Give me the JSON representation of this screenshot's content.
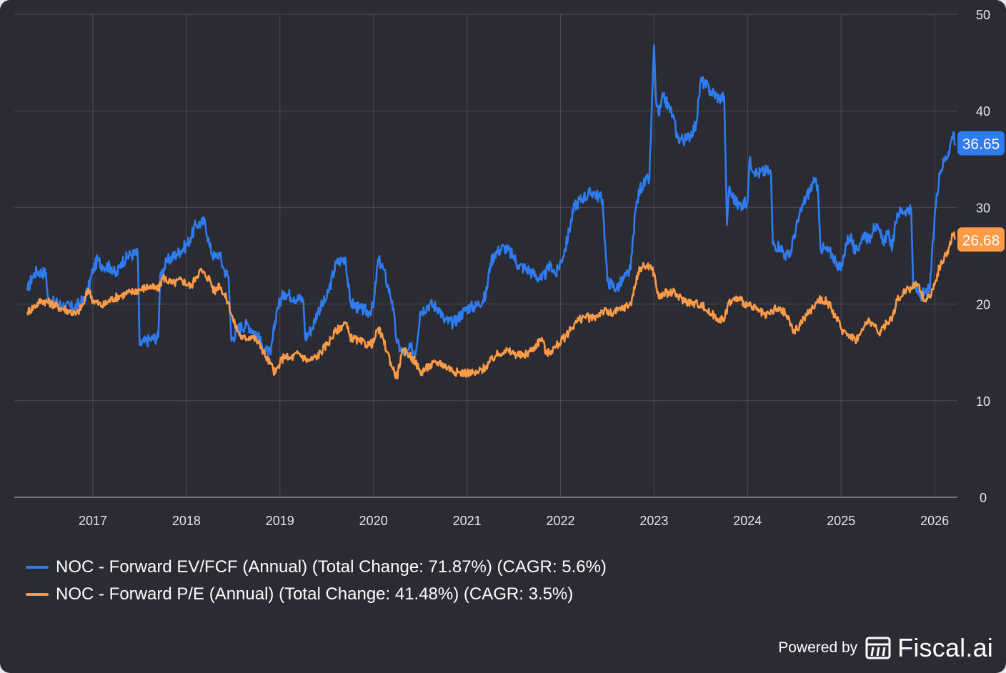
{
  "colors": {
    "background": "#2a2b33",
    "grid": "#4a4b54",
    "axis_text": "#e6e6e6",
    "ev_fcf": "#2f7bf0",
    "pe": "#ff9a47"
  },
  "chart_data": {
    "type": "line",
    "x_ticks": [
      "2017",
      "2018",
      "2019",
      "2020",
      "2021",
      "2022",
      "2023",
      "2024",
      "2025",
      "2026"
    ],
    "y_ticks": [
      "0",
      "10",
      "20",
      "30",
      "40",
      "50"
    ],
    "ylim": [
      0,
      50
    ],
    "xlim": [
      2016.3,
      2026.35
    ],
    "series": [
      {
        "name": "NOC - Forward EV/FCF (Annual) (Total Change: 71.87%) (CAGR: 5.6%)",
        "color": "#2f7bf0",
        "last_value_label": "36.65",
        "points": [
          [
            2016.3,
            21.4
          ],
          [
            2016.35,
            22.8
          ],
          [
            2016.4,
            23.4
          ],
          [
            2016.5,
            23.2
          ],
          [
            2016.52,
            20.3
          ],
          [
            2016.6,
            20.1
          ],
          [
            2016.7,
            19.8
          ],
          [
            2016.8,
            19.6
          ],
          [
            2016.9,
            20.4
          ],
          [
            2016.95,
            21.5
          ],
          [
            2017.0,
            23.5
          ],
          [
            2017.05,
            24.6
          ],
          [
            2017.1,
            24.0
          ],
          [
            2017.2,
            23.8
          ],
          [
            2017.25,
            22.9
          ],
          [
            2017.3,
            24.3
          ],
          [
            2017.4,
            25.1
          ],
          [
            2017.48,
            25.2
          ],
          [
            2017.5,
            15.8
          ],
          [
            2017.6,
            16.3
          ],
          [
            2017.7,
            16.6
          ],
          [
            2017.72,
            23.0
          ],
          [
            2017.8,
            24.5
          ],
          [
            2017.9,
            25.2
          ],
          [
            2018.0,
            26.1
          ],
          [
            2018.05,
            26.9
          ],
          [
            2018.1,
            28.2
          ],
          [
            2018.2,
            28.5
          ],
          [
            2018.25,
            25.9
          ],
          [
            2018.3,
            24.8
          ],
          [
            2018.35,
            25.3
          ],
          [
            2018.4,
            23.6
          ],
          [
            2018.45,
            22.8
          ],
          [
            2018.48,
            16.2
          ],
          [
            2018.55,
            17.5
          ],
          [
            2018.65,
            17.9
          ],
          [
            2018.75,
            16.9
          ],
          [
            2018.8,
            15.9
          ],
          [
            2018.85,
            15.2
          ],
          [
            2018.9,
            14.8
          ],
          [
            2018.97,
            19.6
          ],
          [
            2019.05,
            21.2
          ],
          [
            2019.15,
            20.7
          ],
          [
            2019.25,
            20.4
          ],
          [
            2019.27,
            16.5
          ],
          [
            2019.35,
            17.6
          ],
          [
            2019.4,
            19.2
          ],
          [
            2019.5,
            20.6
          ],
          [
            2019.6,
            24.2
          ],
          [
            2019.7,
            24.8
          ],
          [
            2019.75,
            20.2
          ],
          [
            2019.85,
            19.5
          ],
          [
            2019.95,
            19.2
          ],
          [
            2020.0,
            19.7
          ],
          [
            2020.05,
            24.6
          ],
          [
            2020.1,
            23.8
          ],
          [
            2020.15,
            22.0
          ],
          [
            2020.2,
            20.3
          ],
          [
            2020.25,
            16.0
          ],
          [
            2020.3,
            15.2
          ],
          [
            2020.35,
            14.8
          ],
          [
            2020.4,
            15.5
          ],
          [
            2020.45,
            14.9
          ],
          [
            2020.5,
            19.2
          ],
          [
            2020.6,
            20.0
          ],
          [
            2020.7,
            19.6
          ],
          [
            2020.75,
            18.4
          ],
          [
            2020.85,
            18.0
          ],
          [
            2021.0,
            19.6
          ],
          [
            2021.1,
            19.8
          ],
          [
            2021.2,
            20.8
          ],
          [
            2021.25,
            24.2
          ],
          [
            2021.3,
            25.3
          ],
          [
            2021.4,
            25.9
          ],
          [
            2021.5,
            24.9
          ],
          [
            2021.55,
            24.0
          ],
          [
            2021.65,
            23.6
          ],
          [
            2021.7,
            23.2
          ],
          [
            2021.8,
            22.5
          ],
          [
            2021.9,
            24.1
          ],
          [
            2021.95,
            23.0
          ],
          [
            2022.05,
            25.7
          ],
          [
            2022.15,
            30.2
          ],
          [
            2022.25,
            31.1
          ],
          [
            2022.35,
            31.6
          ],
          [
            2022.45,
            30.8
          ],
          [
            2022.5,
            22.4
          ],
          [
            2022.6,
            21.6
          ],
          [
            2022.7,
            22.9
          ],
          [
            2022.75,
            23.6
          ],
          [
            2022.8,
            29.6
          ],
          [
            2022.85,
            32.0
          ],
          [
            2022.95,
            33.0
          ],
          [
            2023.0,
            46.8
          ],
          [
            2023.02,
            41.3
          ],
          [
            2023.05,
            39.5
          ],
          [
            2023.1,
            41.5
          ],
          [
            2023.2,
            39.6
          ],
          [
            2023.25,
            37.2
          ],
          [
            2023.35,
            37.0
          ],
          [
            2023.45,
            38.6
          ],
          [
            2023.5,
            43.2
          ],
          [
            2023.6,
            42.1
          ],
          [
            2023.7,
            41.3
          ],
          [
            2023.75,
            41.5
          ],
          [
            2023.78,
            28.2
          ],
          [
            2023.8,
            31.8
          ],
          [
            2023.9,
            30.2
          ],
          [
            2024.0,
            30.5
          ],
          [
            2024.02,
            34.8
          ],
          [
            2024.1,
            33.5
          ],
          [
            2024.2,
            33.8
          ],
          [
            2024.25,
            33.6
          ],
          [
            2024.27,
            26.2
          ],
          [
            2024.35,
            26.0
          ],
          [
            2024.4,
            25.1
          ],
          [
            2024.45,
            24.9
          ],
          [
            2024.5,
            27.2
          ],
          [
            2024.6,
            30.5
          ],
          [
            2024.7,
            32.5
          ],
          [
            2024.75,
            32.3
          ],
          [
            2024.78,
            25.9
          ],
          [
            2024.9,
            25.2
          ],
          [
            2024.95,
            24.4
          ],
          [
            2025.0,
            23.5
          ],
          [
            2025.05,
            26.2
          ],
          [
            2025.1,
            27.1
          ],
          [
            2025.15,
            25.2
          ],
          [
            2025.2,
            26.3
          ],
          [
            2025.25,
            27.4
          ],
          [
            2025.3,
            26.6
          ],
          [
            2025.35,
            28.3
          ],
          [
            2025.45,
            26.6
          ],
          [
            2025.5,
            27.2
          ],
          [
            2025.55,
            26.0
          ],
          [
            2025.6,
            29.4
          ],
          [
            2025.7,
            29.8
          ],
          [
            2025.75,
            29.6
          ],
          [
            2025.77,
            22.3
          ],
          [
            2025.8,
            21.6
          ],
          [
            2025.85,
            20.9
          ],
          [
            2025.9,
            21.1
          ],
          [
            2025.95,
            21.6
          ],
          [
            2026.0,
            29.0
          ],
          [
            2026.05,
            33.5
          ],
          [
            2026.1,
            34.8
          ],
          [
            2026.15,
            35.8
          ],
          [
            2026.2,
            37.8
          ],
          [
            2026.22,
            36.65
          ]
        ]
      },
      {
        "name": "NOC - Forward P/E (Annual) (Total Change: 41.48%) (CAGR: 3.5%)",
        "color": "#ff9a47",
        "last_value_label": "26.68",
        "points": [
          [
            2016.3,
            19.2
          ],
          [
            2016.38,
            19.8
          ],
          [
            2016.45,
            20.4
          ],
          [
            2016.55,
            20.1
          ],
          [
            2016.65,
            19.6
          ],
          [
            2016.75,
            19.3
          ],
          [
            2016.82,
            18.9
          ],
          [
            2016.9,
            20.0
          ],
          [
            2016.95,
            21.6
          ],
          [
            2017.0,
            20.4
          ],
          [
            2017.1,
            19.8
          ],
          [
            2017.2,
            20.5
          ],
          [
            2017.3,
            20.9
          ],
          [
            2017.4,
            21.2
          ],
          [
            2017.5,
            21.5
          ],
          [
            2017.6,
            21.8
          ],
          [
            2017.7,
            21.5
          ],
          [
            2017.75,
            22.8
          ],
          [
            2017.85,
            22.1
          ],
          [
            2017.95,
            22.5
          ],
          [
            2018.05,
            21.8
          ],
          [
            2018.1,
            22.8
          ],
          [
            2018.15,
            23.5
          ],
          [
            2018.2,
            23.0
          ],
          [
            2018.25,
            22.6
          ],
          [
            2018.3,
            21.2
          ],
          [
            2018.35,
            22.1
          ],
          [
            2018.45,
            20.1
          ],
          [
            2018.5,
            18.3
          ],
          [
            2018.55,
            17.2
          ],
          [
            2018.6,
            16.4
          ],
          [
            2018.7,
            16.7
          ],
          [
            2018.75,
            16.2
          ],
          [
            2018.8,
            15.6
          ],
          [
            2018.85,
            14.5
          ],
          [
            2018.9,
            13.8
          ],
          [
            2018.95,
            12.8
          ],
          [
            2019.0,
            13.9
          ],
          [
            2019.05,
            14.7
          ],
          [
            2019.1,
            14.3
          ],
          [
            2019.2,
            14.9
          ],
          [
            2019.3,
            14.1
          ],
          [
            2019.4,
            14.6
          ],
          [
            2019.5,
            15.8
          ],
          [
            2019.6,
            17.2
          ],
          [
            2019.7,
            18.1
          ],
          [
            2019.75,
            16.6
          ],
          [
            2019.85,
            16.1
          ],
          [
            2019.95,
            15.8
          ],
          [
            2020.0,
            16.0
          ],
          [
            2020.05,
            17.5
          ],
          [
            2020.1,
            16.4
          ],
          [
            2020.15,
            15.0
          ],
          [
            2020.2,
            13.5
          ],
          [
            2020.25,
            12.4
          ],
          [
            2020.3,
            14.8
          ],
          [
            2020.35,
            15.1
          ],
          [
            2020.45,
            14.0
          ],
          [
            2020.5,
            12.9
          ],
          [
            2020.6,
            13.6
          ],
          [
            2020.7,
            14.0
          ],
          [
            2020.8,
            13.4
          ],
          [
            2020.9,
            12.9
          ],
          [
            2021.0,
            12.9
          ],
          [
            2021.1,
            12.8
          ],
          [
            2021.2,
            13.5
          ],
          [
            2021.3,
            14.6
          ],
          [
            2021.4,
            15.2
          ],
          [
            2021.5,
            14.9
          ],
          [
            2021.6,
            14.6
          ],
          [
            2021.7,
            15.3
          ],
          [
            2021.8,
            16.5
          ],
          [
            2021.85,
            14.8
          ],
          [
            2021.95,
            15.6
          ],
          [
            2022.05,
            16.6
          ],
          [
            2022.15,
            18.0
          ],
          [
            2022.25,
            18.7
          ],
          [
            2022.35,
            18.5
          ],
          [
            2022.45,
            19.3
          ],
          [
            2022.55,
            19.0
          ],
          [
            2022.65,
            19.5
          ],
          [
            2022.75,
            20.0
          ],
          [
            2022.8,
            22.0
          ],
          [
            2022.85,
            23.8
          ],
          [
            2022.95,
            24.0
          ],
          [
            2023.0,
            23.2
          ],
          [
            2023.05,
            20.6
          ],
          [
            2023.1,
            21.1
          ],
          [
            2023.2,
            21.2
          ],
          [
            2023.3,
            20.5
          ],
          [
            2023.4,
            20.1
          ],
          [
            2023.5,
            20.0
          ],
          [
            2023.6,
            19.0
          ],
          [
            2023.7,
            18.5
          ],
          [
            2023.75,
            18.3
          ],
          [
            2023.8,
            20.2
          ],
          [
            2023.9,
            20.6
          ],
          [
            2024.0,
            19.9
          ],
          [
            2024.1,
            19.4
          ],
          [
            2024.2,
            18.7
          ],
          [
            2024.3,
            19.5
          ],
          [
            2024.4,
            19.1
          ],
          [
            2024.45,
            18.2
          ],
          [
            2024.5,
            17.0
          ],
          [
            2024.6,
            18.5
          ],
          [
            2024.7,
            19.6
          ],
          [
            2024.75,
            20.5
          ],
          [
            2024.85,
            20.3
          ],
          [
            2024.95,
            18.6
          ],
          [
            2025.0,
            17.4
          ],
          [
            2025.05,
            17.1
          ],
          [
            2025.1,
            16.8
          ],
          [
            2025.15,
            16.3
          ],
          [
            2025.2,
            16.8
          ],
          [
            2025.25,
            17.7
          ],
          [
            2025.3,
            18.4
          ],
          [
            2025.35,
            17.8
          ],
          [
            2025.4,
            16.9
          ],
          [
            2025.45,
            17.6
          ],
          [
            2025.55,
            18.7
          ],
          [
            2025.6,
            20.4
          ],
          [
            2025.7,
            21.6
          ],
          [
            2025.75,
            21.6
          ],
          [
            2025.8,
            22.3
          ],
          [
            2025.85,
            21.2
          ],
          [
            2025.9,
            20.4
          ],
          [
            2025.95,
            20.9
          ],
          [
            2026.0,
            22.0
          ],
          [
            2026.05,
            23.8
          ],
          [
            2026.1,
            24.6
          ],
          [
            2026.15,
            25.8
          ],
          [
            2026.2,
            27.3
          ],
          [
            2026.22,
            26.68
          ]
        ]
      }
    ]
  },
  "legend": {
    "item1": "NOC - Forward EV/FCF (Annual) (Total Change: 71.87%) (CAGR: 5.6%)",
    "item2": "NOC - Forward P/E (Annual) (Total Change: 41.48%) (CAGR: 3.5%)"
  },
  "branding": {
    "powered_by": "Powered by",
    "name": "Fiscal.ai",
    "logo_icon": "fiscal-logo-icon"
  }
}
